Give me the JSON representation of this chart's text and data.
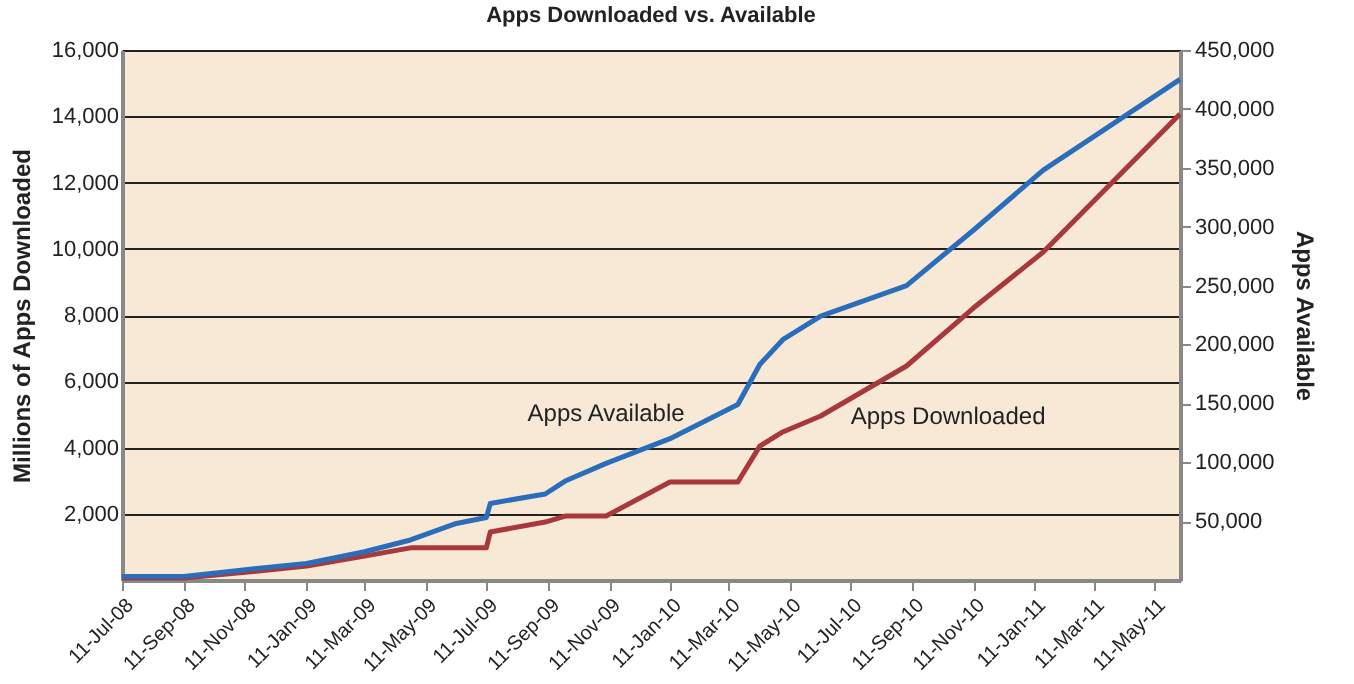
{
  "chart_data": {
    "type": "line",
    "title": "Apps Downloaded vs. Available",
    "ylabel": "Millions of Apps Downloaded",
    "y2label": "Apps Available",
    "xlim": [
      "2008-07-11",
      "2011-06-06"
    ],
    "xticks": [
      {
        "value": "2008-07-11",
        "label": "11-Jul-08"
      },
      {
        "value": "2008-09-11",
        "label": "11-Sep-08"
      },
      {
        "value": "2008-11-11",
        "label": "11-Nov-08"
      },
      {
        "value": "2009-01-11",
        "label": "11-Jan-09"
      },
      {
        "value": "2009-03-11",
        "label": "11-Mar-09"
      },
      {
        "value": "2009-05-11",
        "label": "11-May-09"
      },
      {
        "value": "2009-07-11",
        "label": "11-Jul-09"
      },
      {
        "value": "2009-09-11",
        "label": "11-Sep-09"
      },
      {
        "value": "2009-11-11",
        "label": "11-Nov-09"
      },
      {
        "value": "2010-01-11",
        "label": "11-Jan-10"
      },
      {
        "value": "2010-03-11",
        "label": "11-Mar-10"
      },
      {
        "value": "2010-05-11",
        "label": "11-May-10"
      },
      {
        "value": "2010-07-11",
        "label": "11-Jul-10"
      },
      {
        "value": "2010-09-11",
        "label": "11-Sep-10"
      },
      {
        "value": "2010-11-11",
        "label": "11-Nov-10"
      },
      {
        "value": "2011-01-11",
        "label": "11-Jan-11"
      },
      {
        "value": "2011-03-11",
        "label": "11-Mar-11"
      },
      {
        "value": "2011-05-11",
        "label": "11-May-11"
      }
    ],
    "ylim": [
      0,
      16000
    ],
    "yticks": [
      {
        "value": 2000,
        "label": "2,000"
      },
      {
        "value": 4000,
        "label": "4,000"
      },
      {
        "value": 6000,
        "label": "6,000"
      },
      {
        "value": 8000,
        "label": "8,000"
      },
      {
        "value": 10000,
        "label": "10,000"
      },
      {
        "value": 12000,
        "label": "12,000"
      },
      {
        "value": 14000,
        "label": "14,000"
      },
      {
        "value": 16000,
        "label": "16,000"
      }
    ],
    "y2lim": [
      0,
      450000
    ],
    "y2ticks": [
      {
        "value": 50000,
        "label": "50,000"
      },
      {
        "value": 100000,
        "label": "100,000"
      },
      {
        "value": 150000,
        "label": "150,000"
      },
      {
        "value": 200000,
        "label": "200,000"
      },
      {
        "value": 250000,
        "label": "250,000"
      },
      {
        "value": 300000,
        "label": "300,000"
      },
      {
        "value": 350000,
        "label": "350,000"
      },
      {
        "value": 400000,
        "label": "400,000"
      },
      {
        "value": 450000,
        "label": "450,000"
      }
    ],
    "grid": "y",
    "legend": false,
    "marker": "none",
    "line_style": "solid",
    "series": [
      {
        "name": "Apps Available",
        "color": "#2a6ebb",
        "axis": "y2",
        "x": [
          "2008-07-11",
          "2008-09-11",
          "2008-11-14",
          "2009-01-12",
          "2009-03-11",
          "2009-04-26",
          "2009-06-11",
          "2009-07-11",
          "2009-07-15",
          "2009-09-08",
          "2009-09-28",
          "2009-11-08",
          "2010-01-11",
          "2010-03-20",
          "2010-04-11",
          "2010-05-04",
          "2010-06-11",
          "2010-09-05",
          "2010-11-11",
          "2011-01-20",
          "2011-06-06"
        ],
        "values": [
          3000,
          3000,
          9000,
          14000,
          24000,
          34000,
          48000,
          53000,
          65000,
          73000,
          84000,
          99000,
          120000,
          149000,
          183000,
          204000,
          224000,
          250000,
          297000,
          348000,
          425000
        ]
      },
      {
        "name": "Apps Downloaded",
        "color": "#a8383b",
        "x": [
          "2008-07-11",
          "2008-09-11",
          "2008-11-14",
          "2009-01-12",
          "2009-03-11",
          "2009-04-26",
          "2009-07-11",
          "2009-07-15",
          "2009-09-08",
          "2009-09-28",
          "2009-11-08",
          "2010-01-11",
          "2010-03-20",
          "2010-04-11",
          "2010-05-04",
          "2010-06-11",
          "2010-09-05",
          "2010-11-11",
          "2011-01-20",
          "2011-06-06"
        ],
        "values": [
          60,
          60,
          240,
          420,
          720,
          970,
          970,
          1450,
          1750,
          1930,
          1930,
          2960,
          2960,
          4040,
          4470,
          4950,
          6460,
          8210,
          9900,
          14070
        ]
      }
    ]
  }
}
